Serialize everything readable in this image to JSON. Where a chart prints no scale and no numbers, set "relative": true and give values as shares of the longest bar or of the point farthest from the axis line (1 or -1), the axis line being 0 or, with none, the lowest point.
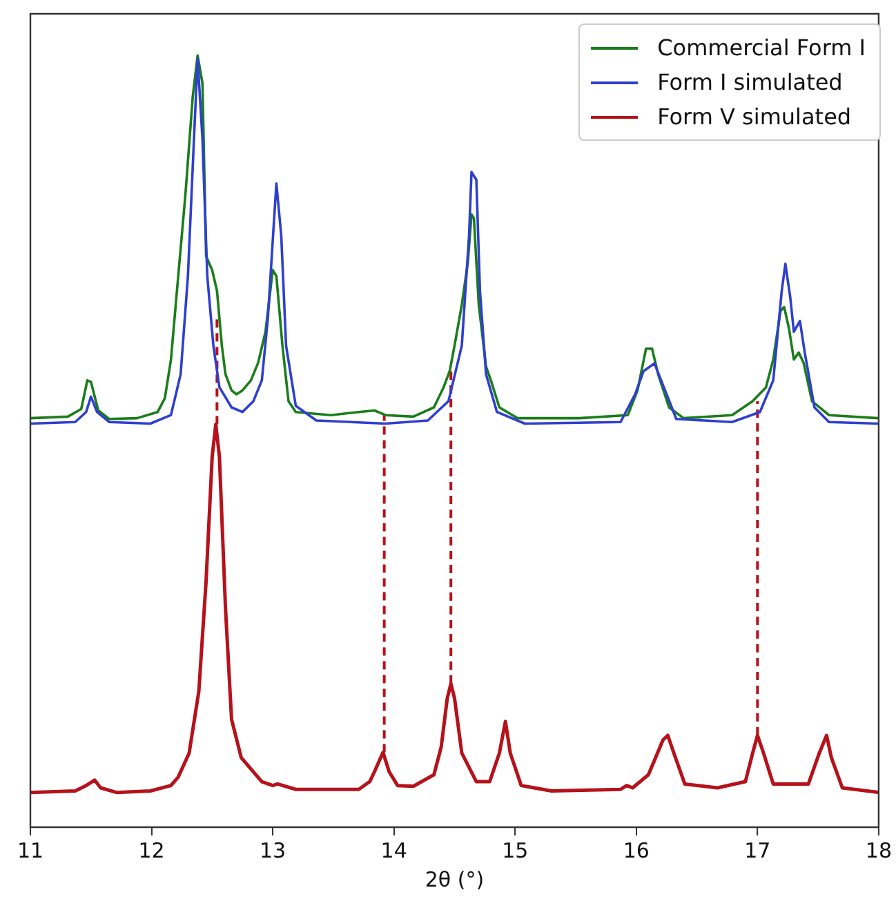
{
  "chart_data": {
    "type": "line",
    "xlabel": "2θ (°)",
    "relative": true,
    "xlim": [
      11,
      18
    ],
    "xticks": [
      11,
      12,
      13,
      14,
      15,
      16,
      17,
      18
    ],
    "legend": "top right",
    "marker": "none",
    "grid": false,
    "series": [
      {
        "name": "Commercial Form I",
        "color": "#1a7d1a",
        "x": [
          11.0,
          11.31,
          11.42,
          11.47,
          11.5,
          11.56,
          11.65,
          11.88,
          12.05,
          12.11,
          12.16,
          12.22,
          12.28,
          12.34,
          12.38,
          12.42,
          12.45,
          12.5,
          12.54,
          12.58,
          12.61,
          12.66,
          12.7,
          12.75,
          12.82,
          12.88,
          12.94,
          13.0,
          13.03,
          13.08,
          13.13,
          13.19,
          13.48,
          13.71,
          13.84,
          13.93,
          14.16,
          14.33,
          14.41,
          14.46,
          14.5,
          14.56,
          14.61,
          14.64,
          14.66,
          14.7,
          14.76,
          14.8,
          14.87,
          15.02,
          15.53,
          15.93,
          16.01,
          16.08,
          16.13,
          16.18,
          16.27,
          16.39,
          16.79,
          16.96,
          17.07,
          17.13,
          17.19,
          17.22,
          17.26,
          17.3,
          17.34,
          17.38,
          17.45,
          17.59,
          18.0
        ],
        "values": [
          0.53,
          0.532,
          0.542,
          0.579,
          0.577,
          0.54,
          0.529,
          0.53,
          0.538,
          0.556,
          0.606,
          0.714,
          0.821,
          0.947,
          1.0,
          0.964,
          0.74,
          0.722,
          0.695,
          0.624,
          0.587,
          0.566,
          0.561,
          0.566,
          0.579,
          0.602,
          0.642,
          0.722,
          0.714,
          0.624,
          0.552,
          0.538,
          0.534,
          0.538,
          0.54,
          0.534,
          0.532,
          0.544,
          0.57,
          0.591,
          0.624,
          0.677,
          0.732,
          0.794,
          0.789,
          0.677,
          0.597,
          0.579,
          0.544,
          0.53,
          0.53,
          0.534,
          0.566,
          0.62,
          0.62,
          0.587,
          0.544,
          0.53,
          0.534,
          0.552,
          0.57,
          0.606,
          0.669,
          0.674,
          0.646,
          0.606,
          0.615,
          0.602,
          0.552,
          0.534,
          0.53
        ]
      },
      {
        "name": "Form I simulated",
        "color": "#2e3fcf",
        "x": [
          11.0,
          11.37,
          11.46,
          11.5,
          11.55,
          11.65,
          11.99,
          12.16,
          12.24,
          12.3,
          12.35,
          12.38,
          12.42,
          12.46,
          12.51,
          12.56,
          12.66,
          12.75,
          12.84,
          12.91,
          12.96,
          13.01,
          13.03,
          13.07,
          13.11,
          13.19,
          13.36,
          13.93,
          14.28,
          14.45,
          14.56,
          14.62,
          14.64,
          14.68,
          14.71,
          14.76,
          14.85,
          15.08,
          15.87,
          15.99,
          16.06,
          16.15,
          16.22,
          16.33,
          16.79,
          17.02,
          17.13,
          17.2,
          17.23,
          17.27,
          17.3,
          17.35,
          17.39,
          17.47,
          17.59,
          18.0
        ],
        "values": [
          0.523,
          0.525,
          0.538,
          0.558,
          0.538,
          0.525,
          0.523,
          0.534,
          0.587,
          0.714,
          0.892,
          0.996,
          0.892,
          0.714,
          0.624,
          0.57,
          0.544,
          0.538,
          0.552,
          0.579,
          0.66,
          0.785,
          0.834,
          0.767,
          0.624,
          0.546,
          0.527,
          0.523,
          0.527,
          0.552,
          0.624,
          0.767,
          0.849,
          0.839,
          0.695,
          0.587,
          0.538,
          0.523,
          0.525,
          0.561,
          0.591,
          0.601,
          0.573,
          0.529,
          0.525,
          0.538,
          0.579,
          0.695,
          0.73,
          0.687,
          0.642,
          0.656,
          0.615,
          0.544,
          0.525,
          0.523
        ]
      },
      {
        "name": "Form V simulated",
        "color": "#b5121b",
        "x": [
          11.0,
          11.37,
          11.46,
          11.53,
          11.58,
          11.71,
          11.99,
          12.16,
          12.22,
          12.31,
          12.39,
          12.45,
          12.5,
          12.53,
          12.56,
          12.61,
          12.66,
          12.74,
          12.91,
          13.0,
          13.04,
          13.19,
          13.71,
          13.8,
          13.84,
          13.91,
          13.96,
          14.03,
          14.16,
          14.33,
          14.39,
          14.44,
          14.47,
          14.5,
          14.56,
          14.68,
          14.79,
          14.87,
          14.92,
          14.96,
          15.05,
          15.3,
          15.87,
          15.92,
          15.97,
          16.1,
          16.22,
          16.26,
          16.31,
          16.4,
          16.67,
          16.9,
          16.96,
          17.0,
          17.05,
          17.13,
          17.42,
          17.51,
          17.57,
          17.61,
          17.7,
          18.0
        ],
        "values": [
          0.045,
          0.047,
          0.054,
          0.061,
          0.051,
          0.045,
          0.047,
          0.054,
          0.065,
          0.096,
          0.176,
          0.319,
          0.48,
          0.522,
          0.48,
          0.284,
          0.14,
          0.09,
          0.059,
          0.054,
          0.056,
          0.049,
          0.049,
          0.059,
          0.072,
          0.097,
          0.072,
          0.054,
          0.053,
          0.068,
          0.104,
          0.167,
          0.186,
          0.167,
          0.096,
          0.059,
          0.059,
          0.096,
          0.137,
          0.096,
          0.054,
          0.047,
          0.049,
          0.054,
          0.051,
          0.068,
          0.113,
          0.119,
          0.096,
          0.056,
          0.051,
          0.059,
          0.096,
          0.119,
          0.096,
          0.056,
          0.056,
          0.096,
          0.119,
          0.09,
          0.051,
          0.045
        ]
      },
      {
        "color": "#b5121b",
        "line_style": "dashed",
        "x": [
          12.54,
          12.54
        ],
        "values": [
          0.522,
          0.663
        ]
      },
      {
        "color": "#b5121b",
        "line_style": "dashed",
        "x": [
          13.92,
          13.92
        ],
        "values": [
          0.097,
          0.534
        ]
      },
      {
        "color": "#b5121b",
        "line_style": "dashed",
        "x": [
          14.47,
          14.47
        ],
        "values": [
          0.186,
          0.591
        ]
      },
      {
        "color": "#b5121b",
        "line_style": "dashed",
        "x": [
          17.0,
          17.0
        ],
        "values": [
          0.119,
          0.552
        ]
      }
    ]
  }
}
